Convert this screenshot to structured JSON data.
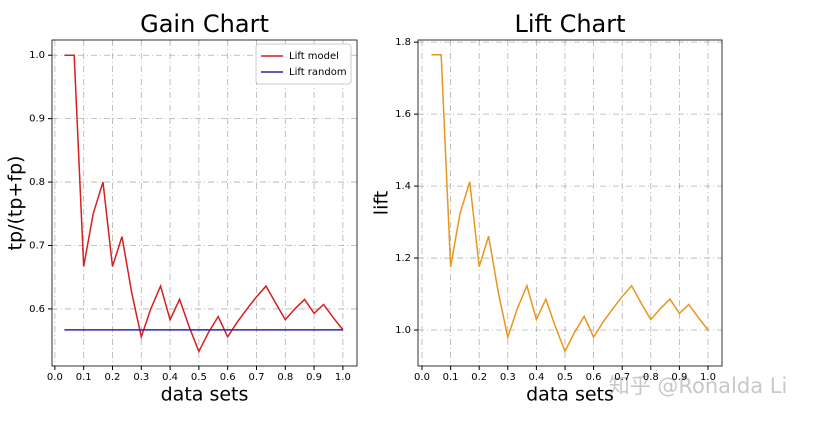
{
  "chart_data": [
    {
      "type": "line",
      "title": "Gain Chart",
      "xlabel": "data sets",
      "ylabel": "tp/(tp+fp)",
      "xlim": [
        -0.01,
        1.049
      ],
      "ylim": [
        0.51,
        1.024
      ],
      "xticks": [
        {
          "value": 0,
          "label": "0.0"
        },
        0.1,
        0.2,
        0.3,
        0.4,
        0.5,
        0.6,
        0.7,
        0.8,
        0.9,
        {
          "value": 1,
          "label": "1.0"
        }
      ],
      "yticks": [
        0.6,
        0.7,
        0.8,
        0.9,
        {
          "value": 1,
          "label": "1.0"
        }
      ],
      "grid": true,
      "legend": "upper right",
      "series": [
        {
          "name": "Lift model",
          "color": "#d42020",
          "x": [
            0.033,
            0.067,
            0.1,
            0.133,
            0.167,
            0.2,
            0.233,
            0.267,
            0.3,
            0.333,
            0.367,
            0.4,
            0.433,
            0.467,
            0.5,
            0.533,
            0.567,
            0.6,
            0.633,
            0.667,
            0.7,
            0.733,
            0.767,
            0.8,
            0.833,
            0.867,
            0.9,
            0.933,
            0.967,
            1
          ],
          "values": [
            1,
            1,
            0.667,
            0.75,
            0.8,
            0.667,
            0.714,
            0.625,
            0.556,
            0.6,
            0.636,
            0.583,
            0.615,
            0.571,
            0.533,
            0.5625,
            0.588,
            0.556,
            0.579,
            0.6,
            0.619,
            0.636,
            0.609,
            0.583,
            0.6,
            0.615,
            0.593,
            0.607,
            0.586,
            0.567
          ]
        },
        {
          "name": "Lift random",
          "color": "#2a2aa8",
          "x": [
            0.033,
            1
          ],
          "values": [
            0.567,
            0.567
          ]
        }
      ]
    },
    {
      "type": "line",
      "title": "Lift Chart",
      "xlabel": "data sets",
      "ylabel": "lift",
      "xlim": [
        -0.014,
        1.049
      ],
      "ylim": [
        0.9,
        1.806
      ],
      "xticks": [
        {
          "value": 0,
          "label": "0.0"
        },
        0.1,
        0.2,
        0.3,
        0.4,
        0.5,
        0.6,
        0.7,
        0.8,
        0.9,
        {
          "value": 1,
          "label": "1.0"
        }
      ],
      "yticks": [
        {
          "value": 1,
          "label": "1.0"
        },
        1.2,
        1.4,
        1.6,
        1.8
      ],
      "grid": true,
      "series": [
        {
          "color": "#e8961e",
          "x": [
            0.033,
            0.067,
            0.1,
            0.133,
            0.167,
            0.2,
            0.233,
            0.267,
            0.3,
            0.333,
            0.367,
            0.4,
            0.433,
            0.467,
            0.5,
            0.533,
            0.567,
            0.6,
            0.633,
            0.667,
            0.7,
            0.733,
            0.767,
            0.8,
            0.833,
            0.867,
            0.9,
            0.933,
            0.967,
            1
          ],
          "values": [
            1.765,
            1.765,
            1.176,
            1.324,
            1.412,
            1.176,
            1.261,
            1.103,
            0.98,
            1.059,
            1.123,
            1.029,
            1.086,
            1.008,
            0.941,
            0.993,
            1.038,
            0.98,
            1.022,
            1.059,
            1.093,
            1.123,
            1.074,
            1.029,
            1.059,
            1.086,
            1.046,
            1.071,
            1.034,
            1
          ]
        }
      ]
    }
  ],
  "watermark": "知乎 @Ronalda Li"
}
